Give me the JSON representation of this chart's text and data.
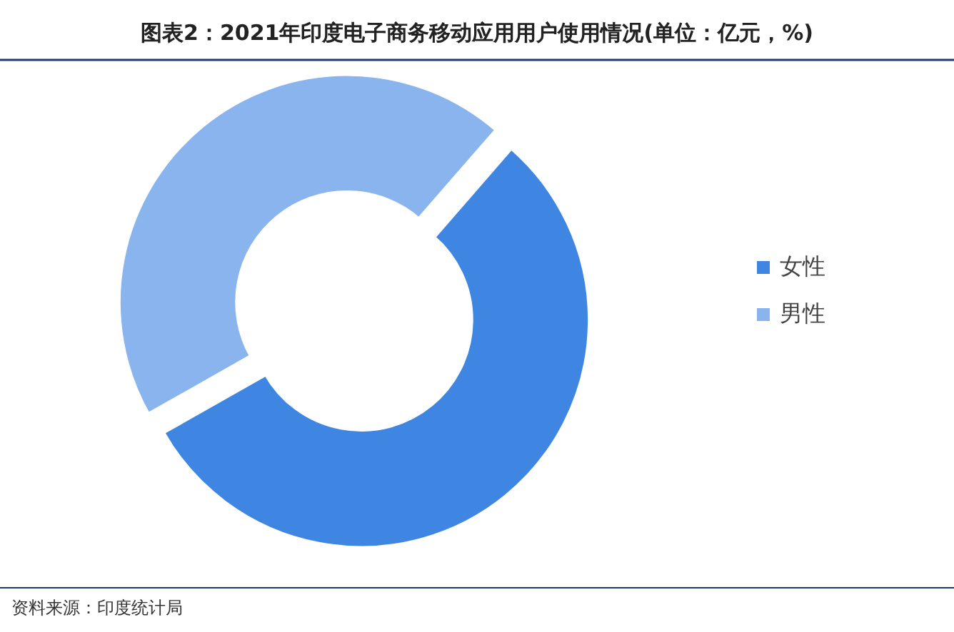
{
  "chart_data": {
    "type": "donut",
    "title": "图表2：2021年印度电子商务移动应用用户使用情况(单位：亿元，%)",
    "categories": [
      "女性",
      "男性"
    ],
    "values": [
      55.4,
      44.6
    ],
    "colors": [
      "#3f86e2",
      "#8ab4ee"
    ],
    "legend": "right",
    "annotations": [
      "资料来源：印度统计局"
    ]
  }
}
